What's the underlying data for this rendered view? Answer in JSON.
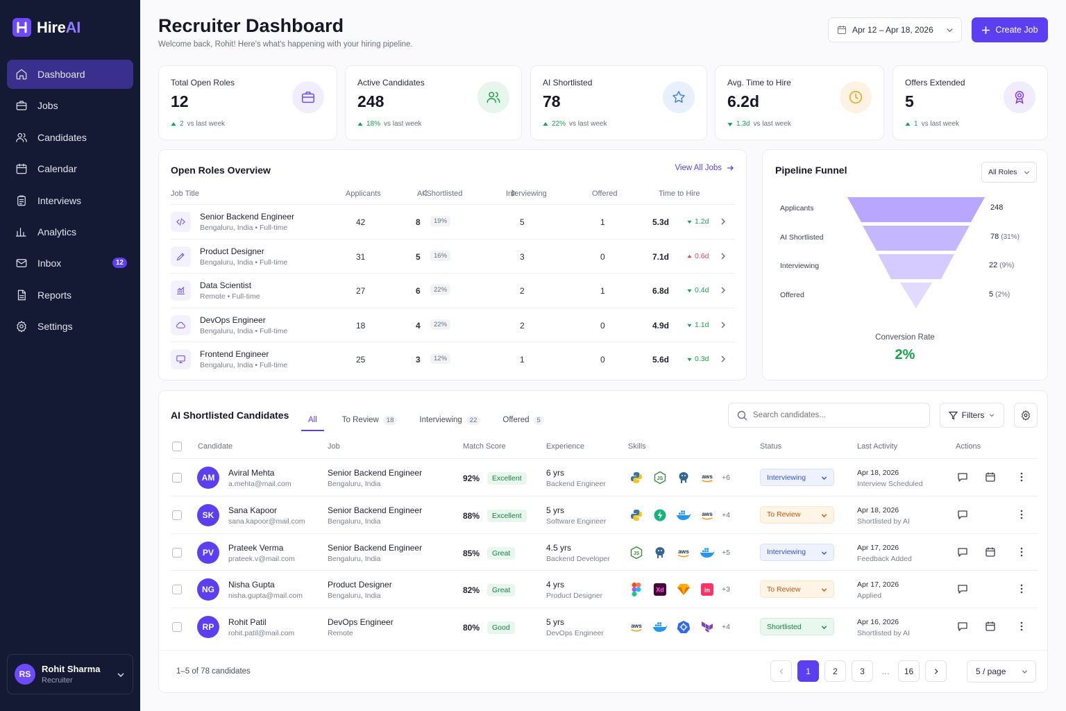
{
  "brand": {
    "name_main": "Hire",
    "name_accent": "AI"
  },
  "sidebar": {
    "items": [
      {
        "label": "Dashboard",
        "icon": "home-icon"
      },
      {
        "label": "Jobs",
        "icon": "briefcase-icon"
      },
      {
        "label": "Candidates",
        "icon": "users-icon"
      },
      {
        "label": "Calendar",
        "icon": "calendar-icon"
      },
      {
        "label": "Interviews",
        "icon": "clipboard-icon"
      },
      {
        "label": "Analytics",
        "icon": "bar-chart-icon"
      },
      {
        "label": "Inbox",
        "icon": "mail-icon",
        "badge": "12"
      },
      {
        "label": "Reports",
        "icon": "document-icon"
      },
      {
        "label": "Settings",
        "icon": "gear-icon"
      }
    ],
    "user": {
      "initials": "RS",
      "name": "Rohit Sharma",
      "role": "Recruiter"
    }
  },
  "header": {
    "title": "Recruiter Dashboard",
    "subtitle": "Welcome back, Rohit! Here's what's happening with your hiring pipeline.",
    "date_range": "Apr 12 – Apr 18, 2026",
    "create_label": "Create Job"
  },
  "stats": [
    {
      "label": "Total Open Roles",
      "value": "12",
      "delta": "2",
      "delta_text": "vs last week",
      "dir": "up",
      "icon": "briefcase-icon",
      "color": "#6d4aff",
      "bg": "#f0edff"
    },
    {
      "label": "Active Candidates",
      "value": "248",
      "delta": "18%",
      "delta_text": "vs last week",
      "dir": "up",
      "icon": "users-icon",
      "color": "#16a34a",
      "bg": "#e6f6ec"
    },
    {
      "label": "AI Shortlisted",
      "value": "78",
      "delta": "22%",
      "delta_text": "vs last week",
      "dir": "up",
      "icon": "star-icon",
      "color": "#3b82f6",
      "bg": "#e8f0fe"
    },
    {
      "label": "Avg. Time to Hire",
      "value": "6.2d",
      "delta": "1.3d",
      "delta_text": "vs last week",
      "dir": "down",
      "icon": "clock-icon",
      "color": "#f59e0b",
      "bg": "#fef3e2"
    },
    {
      "label": "Offers Extended",
      "value": "5",
      "delta": "1",
      "delta_text": "vs last week",
      "dir": "up",
      "icon": "award-icon",
      "color": "#7c3aed",
      "bg": "#f0ebfd"
    }
  ],
  "roles": {
    "title": "Open Roles Overview",
    "view_all": "View All Jobs",
    "columns": [
      "Job Title",
      "Applicants",
      "AI Shortlisted",
      "Interviewing",
      "Offered",
      "Time to Hire"
    ],
    "rows": [
      {
        "title": "Senior Backend Engineer",
        "loc": "Bengaluru, India • Full-time",
        "applicants": "42",
        "shortlisted": "8",
        "pct": "19%",
        "interviewing": "5",
        "offered": "1",
        "tth": "5.3d",
        "delta": "1.2d",
        "dir": "down",
        "icon": "code-icon"
      },
      {
        "title": "Product Designer",
        "loc": "Bengaluru, India • Full-time",
        "applicants": "31",
        "shortlisted": "5",
        "pct": "16%",
        "interviewing": "3",
        "offered": "0",
        "tth": "7.1d",
        "delta": "0.6d",
        "dir": "up",
        "icon": "pen-icon"
      },
      {
        "title": "Data Scientist",
        "loc": "Remote • Full-time",
        "applicants": "27",
        "shortlisted": "6",
        "pct": "22%",
        "interviewing": "2",
        "offered": "1",
        "tth": "6.8d",
        "delta": "0.4d",
        "dir": "down",
        "icon": "chart-icon"
      },
      {
        "title": "DevOps Engineer",
        "loc": "Bengaluru, India • Full-time",
        "applicants": "18",
        "shortlisted": "4",
        "pct": "22%",
        "interviewing": "2",
        "offered": "0",
        "tth": "4.9d",
        "delta": "1.1d",
        "dir": "down",
        "icon": "cloud-icon"
      },
      {
        "title": "Frontend Engineer",
        "loc": "Bengaluru, India • Full-time",
        "applicants": "25",
        "shortlisted": "3",
        "pct": "12%",
        "interviewing": "1",
        "offered": "0",
        "tth": "5.6d",
        "delta": "0.3d",
        "dir": "down",
        "icon": "monitor-icon"
      }
    ]
  },
  "funnel": {
    "title": "Pipeline Funnel",
    "filter": "All Roles",
    "stages": [
      {
        "label": "Applicants",
        "value": "248",
        "pct": ""
      },
      {
        "label": "AI Shortlisted",
        "value": "78",
        "pct": "(31%)"
      },
      {
        "label": "Interviewing",
        "value": "22",
        "pct": "(9%)"
      },
      {
        "label": "Offered",
        "value": "5",
        "pct": "(2%)"
      }
    ],
    "conversion_label": "Conversion Rate",
    "conversion_value": "2%"
  },
  "candidates": {
    "title": "AI Shortlisted Candidates",
    "tabs": [
      {
        "label": "All",
        "count": ""
      },
      {
        "label": "To Review",
        "count": "18"
      },
      {
        "label": "Interviewing",
        "count": "22"
      },
      {
        "label": "Offered",
        "count": "5"
      }
    ],
    "search_placeholder": "Search candidates...",
    "filters_label": "Filters",
    "columns": [
      "Candidate",
      "Job",
      "Match Score",
      "Experience",
      "Skills",
      "Status",
      "Last Activity",
      "Actions"
    ],
    "rows": [
      {
        "initials": "AM",
        "name": "Aviral Mehta",
        "email": "a.mehta@mail.com",
        "job": "Senior Backend Engineer",
        "job_loc": "Bengaluru, India",
        "score": "92%",
        "match": "Excellent",
        "exp": "6 yrs",
        "exp_role": "Backend Engineer",
        "skills": [
          "python",
          "node",
          "postgres",
          "aws"
        ],
        "more": "+6",
        "status": "Interviewing",
        "date": "Apr 18, 2026",
        "activity": "Interview Scheduled",
        "calendar": true
      },
      {
        "initials": "SK",
        "name": "Sana Kapoor",
        "email": "sana.kapoor@mail.com",
        "job": "Senior Backend Engineer",
        "job_loc": "Bengaluru, India",
        "score": "88%",
        "match": "Excellent",
        "exp": "5 yrs",
        "exp_role": "Software Engineer",
        "skills": [
          "python",
          "bolt",
          "docker",
          "aws"
        ],
        "more": "+4",
        "status": "To Review",
        "date": "Apr 18, 2026",
        "activity": "Shortlisted by AI",
        "calendar": false
      },
      {
        "initials": "PV",
        "name": "Prateek Verma",
        "email": "prateek.v@mail.com",
        "job": "Senior Backend Engineer",
        "job_loc": "Bengaluru, India",
        "score": "85%",
        "match": "Great",
        "exp": "4.5 yrs",
        "exp_role": "Backend Developer",
        "skills": [
          "node",
          "postgres",
          "aws",
          "docker"
        ],
        "more": "+5",
        "status": "Interviewing",
        "date": "Apr 17, 2026",
        "activity": "Feedback Added",
        "calendar": true
      },
      {
        "initials": "NG",
        "name": "Nisha Gupta",
        "email": "nisha.gupta@mail.com",
        "job": "Product Designer",
        "job_loc": "Bengaluru, India",
        "score": "82%",
        "match": "Great",
        "exp": "4 yrs",
        "exp_role": "Product Designer",
        "skills": [
          "figma",
          "xd",
          "sketch",
          "indesign"
        ],
        "more": "+3",
        "status": "To Review",
        "date": "Apr 17, 2026",
        "activity": "Applied",
        "calendar": false
      },
      {
        "initials": "RP",
        "name": "Rohit Patil",
        "email": "rohit.patil@mail.com",
        "job": "DevOps Engineer",
        "job_loc": "Remote",
        "score": "80%",
        "match": "Good",
        "exp": "5 yrs",
        "exp_role": "DevOps Engineer",
        "skills": [
          "aws",
          "docker",
          "kubernetes",
          "terraform"
        ],
        "more": "+4",
        "status": "Shortlisted",
        "date": "Apr 16, 2026",
        "activity": "Shortlisted by AI",
        "calendar": true
      }
    ],
    "range_text": "1–5 of 78 candidates",
    "pages": [
      "1",
      "2",
      "3",
      "…",
      "16"
    ],
    "per_page": "5 / page"
  }
}
